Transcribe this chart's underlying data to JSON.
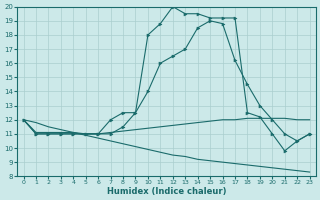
{
  "xlabel": "Humidex (Indice chaleur)",
  "xlim_min": -0.5,
  "xlim_max": 23.5,
  "ylim_min": 8,
  "ylim_max": 20,
  "xticks": [
    0,
    1,
    2,
    3,
    4,
    5,
    6,
    7,
    8,
    9,
    10,
    11,
    12,
    13,
    14,
    15,
    16,
    17,
    18,
    19,
    20,
    21,
    22,
    23
  ],
  "yticks": [
    8,
    9,
    10,
    11,
    12,
    13,
    14,
    15,
    16,
    17,
    18,
    19,
    20
  ],
  "bg_color": "#cce9e9",
  "grid_color": "#aacece",
  "line_color": "#1a6b6b",
  "line1_x": [
    0,
    1,
    2,
    3,
    4,
    5,
    6,
    7,
    8,
    9,
    10,
    11,
    12,
    13,
    14,
    15,
    16,
    17,
    18,
    19,
    20,
    21,
    22,
    23
  ],
  "line1_y": [
    12.0,
    11.0,
    11.0,
    11.0,
    11.0,
    11.0,
    11.0,
    11.0,
    11.5,
    12.5,
    14.0,
    16.0,
    16.5,
    17.0,
    18.5,
    19.0,
    18.8,
    16.2,
    14.5,
    13.0,
    12.0,
    11.0,
    10.5,
    11.0
  ],
  "line2_x": [
    0,
    1,
    2,
    3,
    4,
    5,
    6,
    7,
    8,
    9,
    10,
    11,
    12,
    13,
    14,
    15,
    16,
    17,
    18,
    19,
    20,
    21,
    22,
    23
  ],
  "line2_y": [
    12.0,
    11.0,
    11.0,
    11.0,
    11.0,
    11.0,
    11.0,
    12.0,
    12.5,
    12.5,
    18.0,
    18.8,
    20.0,
    19.5,
    19.5,
    19.2,
    19.2,
    19.2,
    12.5,
    12.2,
    11.0,
    9.8,
    10.5,
    11.0
  ],
  "line3_x": [
    0,
    1,
    2,
    3,
    4,
    5,
    6,
    7,
    8,
    9,
    10,
    11,
    12,
    13,
    14,
    15,
    16,
    17,
    18,
    19,
    20,
    21,
    22,
    23
  ],
  "line3_y": [
    12.0,
    11.1,
    11.1,
    11.1,
    11.1,
    11.0,
    11.0,
    11.1,
    11.2,
    11.3,
    11.4,
    11.5,
    11.6,
    11.7,
    11.8,
    11.9,
    12.0,
    12.0,
    12.1,
    12.1,
    12.1,
    12.1,
    12.0,
    12.0
  ],
  "line4_x": [
    0,
    1,
    2,
    3,
    4,
    5,
    6,
    7,
    8,
    9,
    10,
    11,
    12,
    13,
    14,
    15,
    16,
    17,
    18,
    19,
    20,
    21,
    22,
    23
  ],
  "line4_y": [
    12.0,
    11.8,
    11.5,
    11.3,
    11.1,
    10.9,
    10.7,
    10.5,
    10.3,
    10.1,
    9.9,
    9.7,
    9.5,
    9.4,
    9.2,
    9.1,
    9.0,
    8.9,
    8.8,
    8.7,
    8.6,
    8.5,
    8.4,
    8.3
  ]
}
